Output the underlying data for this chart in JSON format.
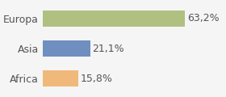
{
  "categories": [
    "Africa",
    "Asia",
    "Europa"
  ],
  "values": [
    15.8,
    21.1,
    63.2
  ],
  "bar_colors": [
    "#f0b87a",
    "#6e8fc0",
    "#afc080"
  ],
  "labels": [
    "15,8%",
    "21,1%",
    "63,2%"
  ],
  "background_color": "#f5f5f5",
  "xlim": [
    0,
    80
  ],
  "label_fontsize": 9,
  "tick_fontsize": 9,
  "bar_height": 0.55
}
